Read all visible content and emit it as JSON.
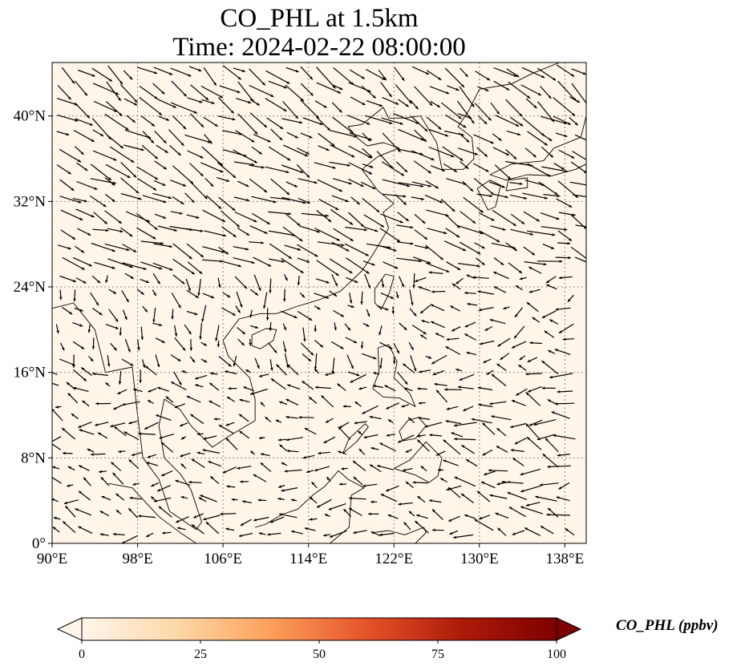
{
  "title": {
    "line1": "CO_PHL at 1.5km",
    "line2": "Time: 2024-02-22 08:00:00"
  },
  "map": {
    "extent": {
      "lon_min": 90,
      "lon_max": 140,
      "lat_min": 0,
      "lat_max": 45
    },
    "lon_ticks": [
      90,
      98,
      106,
      114,
      122,
      130,
      138
    ],
    "lon_tick_labels": [
      "90°E",
      "98°E",
      "106°E",
      "114°E",
      "122°E",
      "130°E",
      "138°E"
    ],
    "lat_ticks": [
      0,
      8,
      16,
      24,
      32,
      40
    ],
    "lat_tick_labels": [
      "0°",
      "8°N",
      "16°N",
      "24°N",
      "32°N",
      "40°N"
    ],
    "gridlines": "dotted",
    "background_color": "#fff5e8",
    "coastline_color": "#000000",
    "layers": [
      "filled CO_PHL concentration",
      "wind vectors",
      "coastlines",
      "country borders"
    ]
  },
  "colorbar": {
    "label": "CO_PHL (ppbv)",
    "ticks": [
      0,
      25,
      50,
      75,
      100
    ],
    "tick_labels": [
      "0",
      "25",
      "50",
      "75",
      "100"
    ],
    "range": [
      0,
      100
    ],
    "extend": "both",
    "colors": [
      "#fff5eb",
      "#fdd8a8",
      "#fd9f5a",
      "#e5532a",
      "#ad1a09",
      "#7f0000"
    ]
  }
}
